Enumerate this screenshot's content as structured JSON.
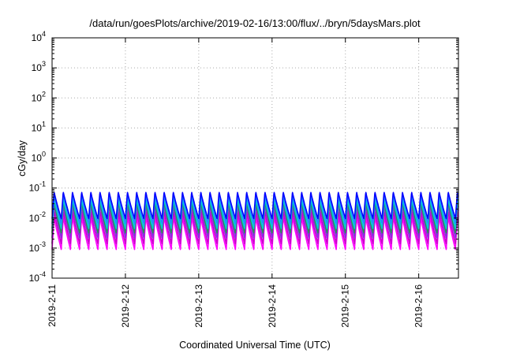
{
  "chart_data": {
    "type": "line",
    "title": "/data/run/goesPlots/archive/2019-02-16/13:00/flux/../bryn/5daysMars.plot",
    "xlabel": "Coordinated Universal Time (UTC)",
    "ylabel": "cGy/day",
    "yscale": "log",
    "ylim": [
      0.0001,
      10000
    ],
    "xlim": [
      "2019-02-11 00:00",
      "2019-02-16 13:00"
    ],
    "y_ticks": [
      {
        "base": "10",
        "exp": "-4"
      },
      {
        "base": "10",
        "exp": "-3"
      },
      {
        "base": "10",
        "exp": "-2"
      },
      {
        "base": "10",
        "exp": "-1"
      },
      {
        "base": "10",
        "exp": "0"
      },
      {
        "base": "10",
        "exp": "1"
      },
      {
        "base": "10",
        "exp": "2"
      },
      {
        "base": "10",
        "exp": "3"
      },
      {
        "base": "10",
        "exp": "4"
      }
    ],
    "x_ticks": [
      "2019-2-11",
      "2019-2-12",
      "2019-2-13",
      "2019-2-14",
      "2019-2-15",
      "2019-2-16"
    ],
    "grid": true,
    "legend": "none",
    "cycle_hours": 3,
    "series": [
      {
        "color": "#ff00ff",
        "peak": 0.011,
        "trough": 0.0009
      },
      {
        "color": "#cc00cc",
        "peak": 0.017,
        "trough": 0.0014
      },
      {
        "color": "#8a2be2",
        "peak": 0.026,
        "trough": 0.0022
      },
      {
        "color": "#2e8b57",
        "peak": 0.035,
        "trough": 0.0032
      },
      {
        "color": "#00ced1",
        "peak": 0.045,
        "trough": 0.0045
      },
      {
        "color": "#1e90ff",
        "peak": 0.058,
        "trough": 0.0065
      },
      {
        "color": "#0000ff",
        "peak": 0.075,
        "trough": 0.0095
      }
    ]
  }
}
